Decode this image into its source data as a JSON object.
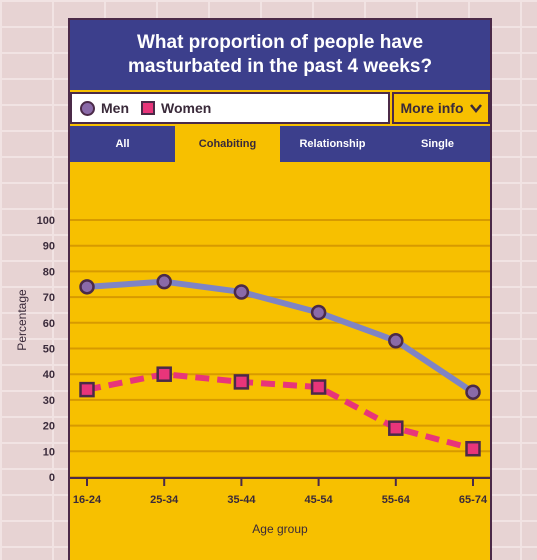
{
  "title": "What proportion of people have masturbated in the past 4 weeks?",
  "legend": {
    "men": "Men",
    "women": "Women"
  },
  "more_info": "More info",
  "tabs": [
    {
      "label": "All",
      "active": false
    },
    {
      "label": "Cohabiting",
      "active": true
    },
    {
      "label": "Relationship",
      "active": false
    },
    {
      "label": "Single",
      "active": false
    }
  ],
  "colors": {
    "men_line": "#7f84c4",
    "women_line": "#e8357a",
    "background": "#f7c000",
    "header": "#3c3f8c"
  },
  "chart_data": {
    "type": "line",
    "categories": [
      "16-24",
      "25-34",
      "35-44",
      "45-54",
      "55-64",
      "65-74"
    ],
    "series": [
      {
        "name": "Men",
        "values": [
          74,
          76,
          72,
          64,
          53,
          33
        ]
      },
      {
        "name": "Women",
        "values": [
          34,
          40,
          37,
          35,
          19,
          11
        ]
      }
    ],
    "xlabel": "Age group",
    "ylabel": "Percentage",
    "ylim": [
      0,
      100
    ],
    "yticks": [
      0,
      10,
      20,
      30,
      40,
      50,
      60,
      70,
      80,
      90,
      100
    ],
    "grid": true
  }
}
